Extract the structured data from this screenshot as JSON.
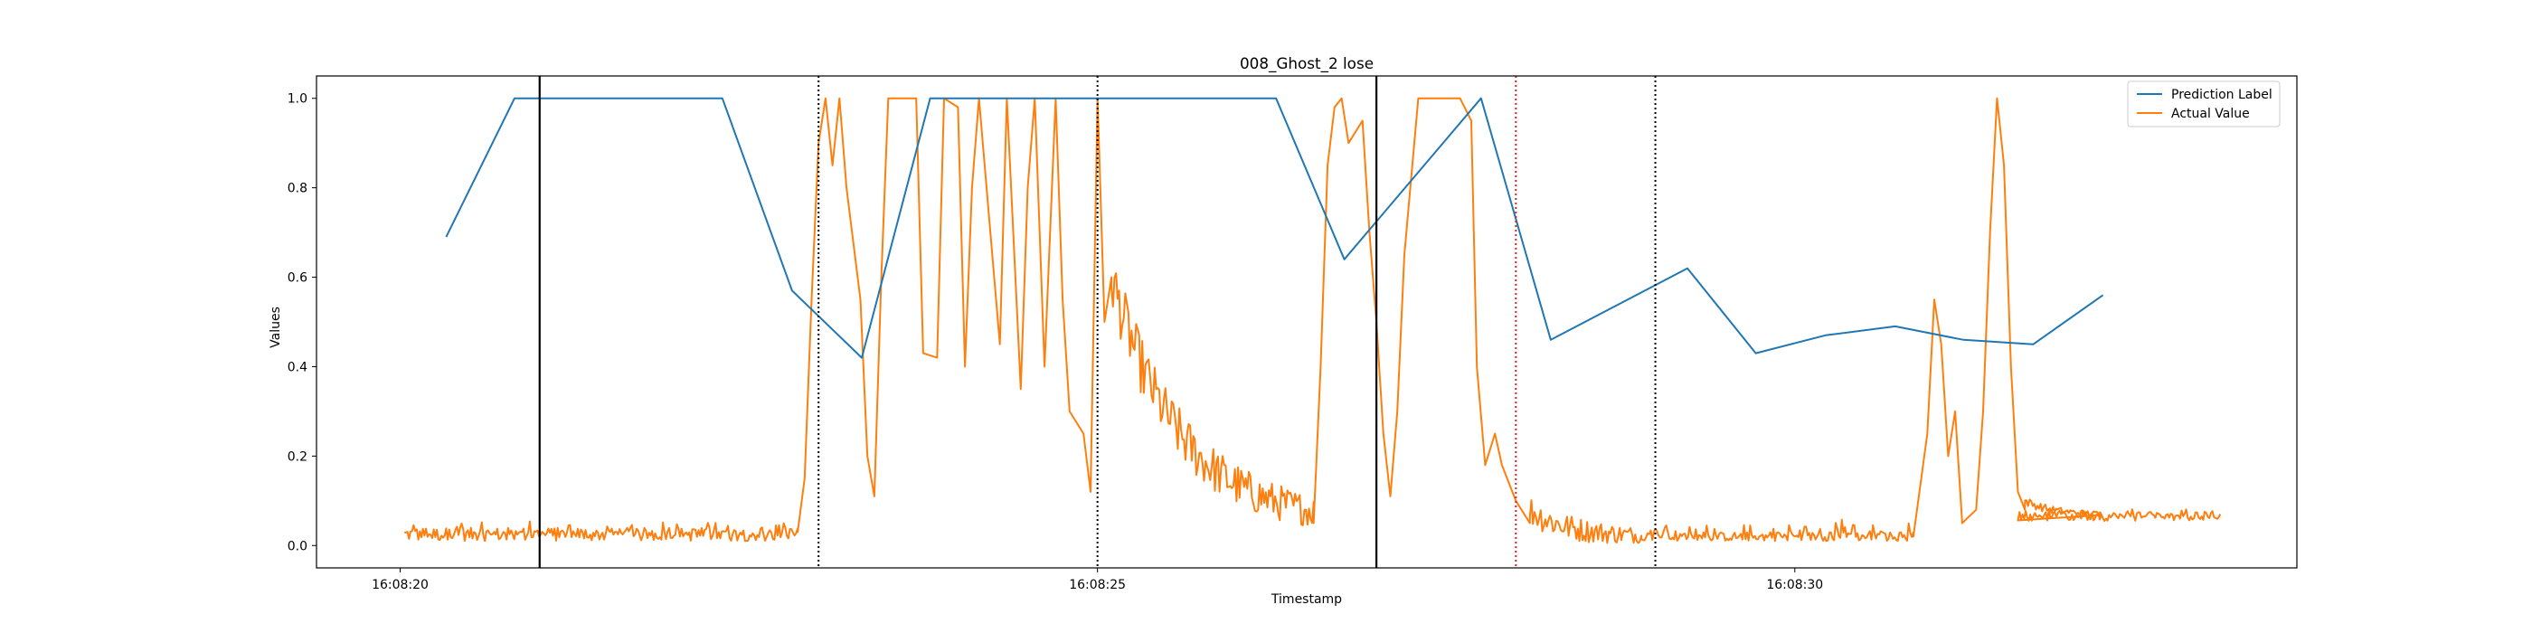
{
  "chart_data": {
    "type": "line",
    "title": "008_Ghost_2 lose",
    "xlabel": "Timestamp",
    "ylabel": "Values",
    "x_unit": "seconds after 16:08:20",
    "xlim": [
      -0.6,
      13.6
    ],
    "ylim": [
      -0.05,
      1.05
    ],
    "x_ticks": [
      {
        "value": 0,
        "label": "16:08:20"
      },
      {
        "value": 5,
        "label": "16:08:25"
      },
      {
        "value": 10,
        "label": "16:08:30"
      }
    ],
    "y_ticks": [
      {
        "value": 0.0,
        "label": "0.0"
      },
      {
        "value": 0.2,
        "label": "0.2"
      },
      {
        "value": 0.4,
        "label": "0.4"
      },
      {
        "value": 0.6,
        "label": "0.6"
      },
      {
        "value": 0.8,
        "label": "0.8"
      },
      {
        "value": 1.0,
        "label": "1.0"
      }
    ],
    "legend_position": "top-right",
    "grid": false,
    "series": [
      {
        "name": "Prediction Label",
        "color": "#1f77b4",
        "x": [
          0.33,
          0.82,
          2.31,
          2.81,
          3.31,
          3.8,
          5.3,
          6.28,
          6.77,
          7.75,
          8.25,
          8.74,
          9.23,
          9.72,
          10.22,
          10.72,
          11.21,
          11.71,
          12.21
        ],
        "y": [
          0.69,
          1.0,
          1.0,
          0.57,
          0.42,
          1.0,
          1.0,
          1.0,
          0.64,
          1.0,
          0.46,
          0.54,
          0.62,
          0.43,
          0.47,
          0.49,
          0.46,
          0.45,
          0.56
        ]
      },
      {
        "name": "Actual Value",
        "color": "#ff7f0e",
        "segments": [
          {
            "x0": 0.03,
            "x1": 2.85,
            "base": 0.025,
            "amp": 0.015,
            "noise": 0.02
          },
          {
            "x0": 5.1,
            "x1": 6.55,
            "base": 0.05,
            "amp": 0.03,
            "noise": 0.05
          },
          {
            "x0": 8.1,
            "x1": 10.85,
            "base": 0.02,
            "amp": 0.01,
            "noise": 0.02
          },
          {
            "x0": 11.6,
            "x1": 13.05,
            "base": 0.065,
            "amp": 0.01,
            "noise": 0.008
          }
        ],
        "key_points": [
          [
            2.85,
            0.03
          ],
          [
            2.9,
            0.15
          ],
          [
            2.95,
            0.55
          ],
          [
            3.0,
            0.9
          ],
          [
            3.05,
            1.0
          ],
          [
            3.1,
            0.85
          ],
          [
            3.15,
            1.0
          ],
          [
            3.2,
            0.8
          ],
          [
            3.3,
            0.55
          ],
          [
            3.35,
            0.2
          ],
          [
            3.4,
            0.11
          ],
          [
            3.45,
            0.6
          ],
          [
            3.5,
            1.0
          ],
          [
            3.6,
            1.0
          ],
          [
            3.7,
            1.0
          ],
          [
            3.75,
            0.43
          ],
          [
            3.85,
            0.42
          ],
          [
            3.9,
            1.0
          ],
          [
            4.0,
            0.98
          ],
          [
            4.05,
            0.4
          ],
          [
            4.1,
            0.8
          ],
          [
            4.15,
            1.0
          ],
          [
            4.3,
            0.45
          ],
          [
            4.35,
            1.0
          ],
          [
            4.45,
            0.35
          ],
          [
            4.5,
            0.8
          ],
          [
            4.55,
            1.0
          ],
          [
            4.62,
            0.4
          ],
          [
            4.7,
            1.0
          ],
          [
            4.75,
            0.55
          ],
          [
            4.8,
            0.3
          ],
          [
            4.9,
            0.25
          ],
          [
            4.95,
            0.12
          ],
          [
            5.0,
            1.0
          ],
          [
            5.05,
            0.5
          ],
          [
            5.1,
            0.6
          ]
        ],
        "key_points_2": [
          [
            6.55,
            0.05
          ],
          [
            6.6,
            0.4
          ],
          [
            6.65,
            0.85
          ],
          [
            6.7,
            0.98
          ],
          [
            6.75,
            1.0
          ],
          [
            6.8,
            0.9
          ],
          [
            6.9,
            0.95
          ],
          [
            6.95,
            0.7
          ],
          [
            7.0,
            0.5
          ],
          [
            7.05,
            0.25
          ],
          [
            7.1,
            0.11
          ],
          [
            7.15,
            0.3
          ],
          [
            7.2,
            0.65
          ],
          [
            7.3,
            1.0
          ],
          [
            7.4,
            1.0
          ],
          [
            7.6,
            1.0
          ],
          [
            7.68,
            0.95
          ],
          [
            7.72,
            0.4
          ],
          [
            7.78,
            0.18
          ],
          [
            7.85,
            0.25
          ],
          [
            7.9,
            0.18
          ],
          [
            8.0,
            0.1
          ],
          [
            8.1,
            0.05
          ]
        ],
        "key_points_3": [
          [
            10.85,
            0.02
          ],
          [
            10.95,
            0.25
          ],
          [
            11.0,
            0.55
          ],
          [
            11.05,
            0.45
          ],
          [
            11.1,
            0.2
          ],
          [
            11.15,
            0.3
          ],
          [
            11.2,
            0.05
          ],
          [
            11.3,
            0.08
          ],
          [
            11.35,
            0.3
          ],
          [
            11.4,
            0.7
          ],
          [
            11.45,
            1.0
          ],
          [
            11.5,
            0.85
          ],
          [
            11.55,
            0.4
          ],
          [
            11.6,
            0.12
          ],
          [
            11.65,
            0.08
          ]
        ]
      }
    ],
    "vertical_lines": [
      {
        "x": 1.0,
        "color": "#000000",
        "style": "solid"
      },
      {
        "x": 3.0,
        "color": "#000000",
        "style": "dotted"
      },
      {
        "x": 5.0,
        "color": "#000000",
        "style": "dotted"
      },
      {
        "x": 7.0,
        "color": "#000000",
        "style": "solid"
      },
      {
        "x": 8.0,
        "color": "#d62728",
        "style": "dotted"
      },
      {
        "x": 9.0,
        "color": "#000000",
        "style": "dotted"
      }
    ]
  }
}
